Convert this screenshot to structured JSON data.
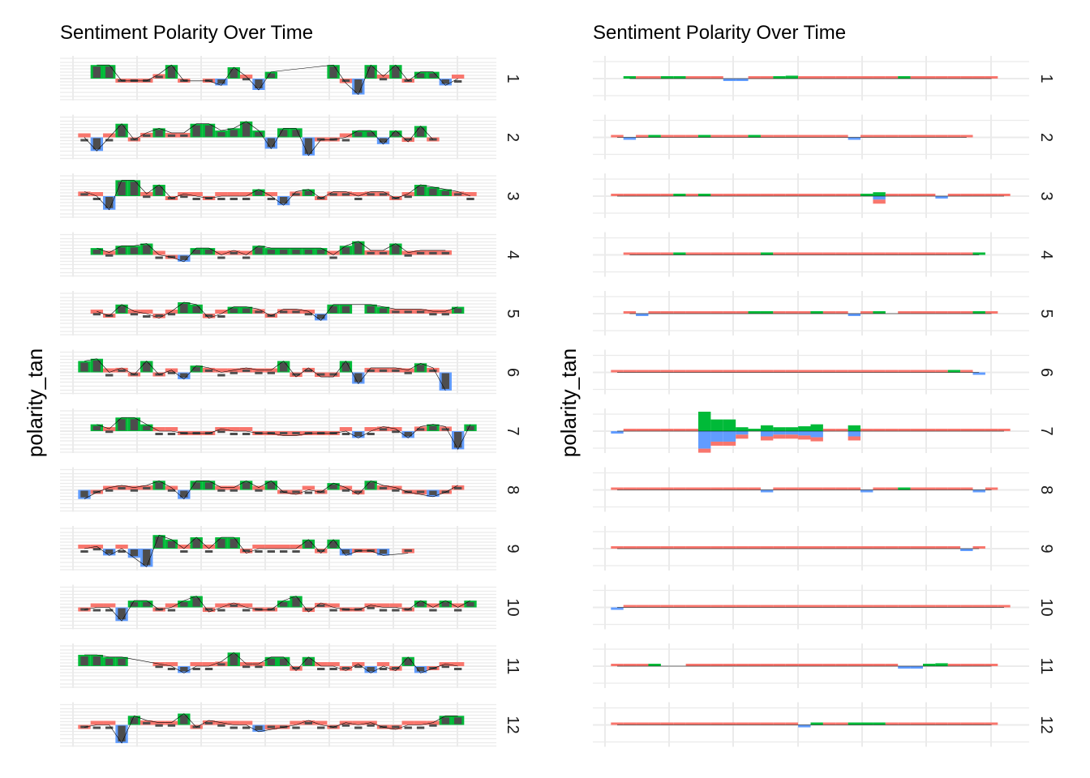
{
  "chart_data": [
    {
      "type": "bar",
      "title": "Sentiment Polarity Over Time",
      "xlabel": "",
      "ylabel": "polarity_tan",
      "facets": [
        "1",
        "2",
        "3",
        "4",
        "5",
        "6",
        "7",
        "8",
        "9",
        "10",
        "11",
        "12"
      ],
      "x_count": 32,
      "fill_colors": {
        "positive": "#00ba38",
        "negative": "#619cff",
        "neutral": "#f8766d"
      },
      "bar_color": "#4d4d4d",
      "panels": [
        {
          "facet": "1",
          "values": [
            null,
            0.6,
            0.6,
            -0.1,
            -0.1,
            -0.1,
            0.2,
            0.6,
            -0.1,
            null,
            -0.1,
            -0.3,
            0.5,
            0.1,
            -0.5,
            0.3,
            null,
            null,
            null,
            null,
            0.6,
            -0.2,
            -0.7,
            0.6,
            0.1,
            0.6,
            -0.1,
            0.3,
            0.3,
            -0.3,
            0.0,
            null
          ]
        },
        {
          "facet": "2",
          "values": [
            0.0,
            -0.6,
            0.0,
            0.6,
            -0.1,
            0.2,
            0.4,
            0.2,
            0.2,
            0.6,
            0.6,
            0.3,
            0.4,
            0.7,
            0.3,
            -0.5,
            0.4,
            0.4,
            -0.8,
            -0.1,
            -0.1,
            0.0,
            0.3,
            0.3,
            -0.3,
            0.3,
            -0.2,
            0.5,
            -0.1,
            null,
            null,
            null
          ]
        },
        {
          "facet": "3",
          "values": [
            0.2,
            0.0,
            -0.6,
            0.7,
            0.7,
            0.1,
            0.5,
            -0.1,
            0.1,
            0.0,
            -0.1,
            0.0,
            0.0,
            0.0,
            0.3,
            0.0,
            -0.4,
            0.2,
            0.3,
            -0.1,
            0.2,
            0.2,
            0.0,
            0.2,
            0.2,
            -0.1,
            0.1,
            0.5,
            0.4,
            0.3,
            0.2,
            0.0
          ]
        },
        {
          "facet": "4",
          "values": [
            null,
            0.3,
            0.1,
            0.4,
            0.4,
            0.5,
            0.0,
            -0.1,
            -0.3,
            0.3,
            0.3,
            0.0,
            0.2,
            0.0,
            0.4,
            0.3,
            0.3,
            0.3,
            0.3,
            0.3,
            0.0,
            0.4,
            0.6,
            0.2,
            0.2,
            0.5,
            0.1,
            0.2,
            0.2,
            0.2,
            null,
            null
          ]
        },
        {
          "facet": "5",
          "values": [
            null,
            0.1,
            -0.1,
            0.4,
            0.1,
            0.0,
            -0.2,
            0.1,
            0.5,
            0.4,
            -0.2,
            0.0,
            0.3,
            0.3,
            0.2,
            -0.1,
            0.2,
            0.2,
            0.1,
            -0.3,
            0.4,
            0.4,
            null,
            0.4,
            0.3,
            0.2,
            0.2,
            0.2,
            0.1,
            0.1,
            0.3,
            null
          ]
        },
        {
          "facet": "6",
          "values": [
            0.5,
            0.6,
            0.0,
            0.2,
            -0.1,
            0.5,
            -0.1,
            0.1,
            -0.3,
            0.3,
            0.2,
            0.0,
            0.1,
            0.2,
            0.1,
            0.1,
            0.5,
            -0.2,
            0.2,
            -0.2,
            -0.2,
            0.5,
            -0.5,
            0.2,
            0.2,
            0.2,
            0.1,
            0.4,
            0.2,
            -0.8,
            null,
            null
          ]
        },
        {
          "facet": "7",
          "values": [
            null,
            0.3,
            0.1,
            0.6,
            0.6,
            0.3,
            0.0,
            0.0,
            -0.1,
            -0.1,
            -0.1,
            0.1,
            0.0,
            0.0,
            -0.1,
            -0.1,
            -0.2,
            -0.2,
            -0.1,
            -0.1,
            -0.1,
            0.0,
            -0.3,
            0.0,
            0.2,
            0.1,
            -0.3,
            0.2,
            0.3,
            0.2,
            -0.8,
            0.3
          ]
        },
        {
          "facet": "8",
          "values": [
            -0.4,
            -0.1,
            0.1,
            0.2,
            0.1,
            0.2,
            0.4,
            0.1,
            -0.4,
            0.4,
            0.4,
            0.1,
            0.1,
            0.4,
            0.1,
            0.4,
            -0.1,
            -0.2,
            0.0,
            -0.1,
            0.3,
            0.1,
            -0.2,
            0.4,
            0.2,
            0.1,
            -0.1,
            -0.2,
            -0.3,
            -0.1,
            0.2,
            null
          ]
        },
        {
          "facet": "9",
          "values": [
            0.0,
            0.1,
            -0.3,
            0.0,
            -0.4,
            -0.8,
            0.6,
            0.4,
            0.0,
            0.5,
            0.0,
            0.5,
            0.5,
            -0.2,
            0.0,
            0.0,
            0.0,
            0.0,
            0.4,
            -0.2,
            0.4,
            -0.3,
            -0.1,
            -0.1,
            -0.3,
            null,
            -0.2,
            null,
            null,
            null,
            null,
            null
          ]
        },
        {
          "facet": "10",
          "values": [
            -0.1,
            0.0,
            0.0,
            -0.6,
            0.3,
            0.3,
            -0.1,
            0.0,
            0.3,
            0.5,
            -0.2,
            0.0,
            0.2,
            0.0,
            -0.1,
            -0.1,
            0.3,
            0.5,
            -0.2,
            0.2,
            0.0,
            -0.1,
            -0.1,
            0.1,
            0.0,
            0.0,
            -0.1,
            0.3,
            0.0,
            0.3,
            0.0,
            0.3
          ]
        },
        {
          "facet": "11",
          "values": [
            0.5,
            0.5,
            0.4,
            0.4,
            null,
            null,
            0.1,
            0.0,
            -0.3,
            0.0,
            0.0,
            0.2,
            0.6,
            0.1,
            0.1,
            0.4,
            0.4,
            -0.2,
            0.4,
            0.0,
            0.0,
            -0.2,
            0.1,
            -0.3,
            0.0,
            -0.2,
            0.4,
            -0.3,
            -0.1,
            0.1,
            0.0,
            null
          ]
        },
        {
          "facet": "12",
          "values": [
            -0.1,
            0.0,
            0.0,
            -0.8,
            0.4,
            0.2,
            0.1,
            0.1,
            0.5,
            -0.1,
            0.2,
            0.1,
            0.0,
            0.0,
            -0.3,
            -0.2,
            -0.1,
            0.0,
            0.2,
            0.0,
            -0.1,
            0.1,
            0.0,
            0.1,
            -0.1,
            -0.2,
            0.0,
            0.0,
            0.1,
            0.4,
            0.4,
            null
          ]
        }
      ]
    },
    {
      "type": "bar",
      "title": "Sentiment Polarity Over Time",
      "xlabel": "",
      "ylabel": "polarity_tan",
      "facets": [
        "1",
        "2",
        "3",
        "4",
        "5",
        "6",
        "7",
        "8",
        "9",
        "10",
        "11",
        "12"
      ],
      "x_count": 32,
      "fill_colors": {
        "positive": "#00ba38",
        "negative": "#619cff",
        "neutral": "#f8766d"
      },
      "panels": [
        {
          "facet": "1",
          "values": [
            null,
            0.08,
            0.05,
            0.06,
            0.1,
            0.12,
            0.05,
            0.05,
            0.05,
            -0.05,
            -0.1,
            0.05,
            0.06,
            0.1,
            0.15,
            0.05,
            0.05,
            0.05,
            0.05,
            0.05,
            0.05,
            0.05,
            0.05,
            0.08,
            0.05,
            0.05,
            0.05,
            0.05,
            0.05,
            0.05,
            0.05,
            null
          ]
        },
        {
          "facet": "2",
          "values": [
            0.05,
            -0.05,
            0.05,
            0.1,
            0.05,
            0.05,
            0.05,
            0.1,
            0.05,
            0.05,
            0.05,
            0.08,
            0.06,
            0.05,
            0.05,
            0.05,
            0.05,
            0.05,
            0.05,
            -0.05,
            0.05,
            0.05,
            0.05,
            0.05,
            0.05,
            0.05,
            0.05,
            0.05,
            0.05,
            null,
            null,
            null
          ]
        },
        {
          "facet": "3",
          "values": [
            0.05,
            0.05,
            0.05,
            0.05,
            0.05,
            0.08,
            0.05,
            0.1,
            0.05,
            0.05,
            0.05,
            0.05,
            0.05,
            0.05,
            0.05,
            0.05,
            0.06,
            0.05,
            0.05,
            0.05,
            0.1,
            0.2,
            0.05,
            0.05,
            0.05,
            0.05,
            -0.1,
            0.05,
            0.05,
            0.05,
            0.05,
            0.05
          ]
        },
        {
          "facet": "4",
          "values": [
            null,
            0.05,
            0.05,
            0.05,
            0.05,
            0.08,
            0.05,
            0.05,
            0.05,
            0.05,
            0.05,
            0.05,
            0.08,
            0.05,
            0.05,
            0.05,
            0.05,
            0.05,
            0.05,
            0.05,
            0.05,
            0.05,
            0.05,
            0.05,
            0.05,
            0.05,
            0.05,
            0.05,
            0.05,
            0.1,
            null,
            null
          ]
        },
        {
          "facet": "5",
          "values": [
            null,
            0.05,
            -0.05,
            0.05,
            0.05,
            0.05,
            0.05,
            0.05,
            0.05,
            0.05,
            0.05,
            0.1,
            0.08,
            0.05,
            0.05,
            0.05,
            0.08,
            0.05,
            0.05,
            -0.05,
            0.05,
            0.1,
            null,
            0.05,
            0.05,
            0.05,
            0.05,
            0.05,
            0.05,
            0.1,
            0.05,
            null
          ]
        },
        {
          "facet": "6",
          "values": [
            0.05,
            0.05,
            0.05,
            0.05,
            0.05,
            0.05,
            0.05,
            0.05,
            0.05,
            0.05,
            0.05,
            0.05,
            0.05,
            0.05,
            0.05,
            0.05,
            0.05,
            0.05,
            0.05,
            0.05,
            0.05,
            0.05,
            0.05,
            0.05,
            0.05,
            0.05,
            0.05,
            0.1,
            0.05,
            -0.1,
            null,
            null
          ]
        },
        {
          "facet": "7",
          "values": [
            -0.05,
            0.05,
            0.05,
            0.05,
            0.05,
            0.05,
            0.05,
            1.0,
            0.6,
            0.6,
            0.2,
            0.1,
            0.3,
            0.2,
            0.2,
            0.25,
            0.35,
            0.05,
            0.05,
            0.3,
            0.05,
            0.05,
            0.05,
            0.05,
            0.05,
            0.05,
            0.05,
            0.05,
            0.05,
            0.05,
            0.05,
            0.05
          ]
        },
        {
          "facet": "8",
          "values": [
            0.05,
            0.05,
            0.05,
            0.05,
            0.05,
            0.05,
            0.05,
            0.05,
            0.05,
            0.05,
            0.05,
            0.05,
            -0.05,
            0.05,
            0.05,
            0.05,
            0.05,
            0.05,
            0.05,
            0.05,
            -0.05,
            0.05,
            0.05,
            0.08,
            0.05,
            0.05,
            0.05,
            0.05,
            0.05,
            -0.05,
            0.05,
            null
          ]
        },
        {
          "facet": "9",
          "values": [
            0.05,
            0.05,
            0.05,
            0.05,
            0.05,
            0.05,
            0.05,
            0.05,
            0.05,
            0.05,
            0.05,
            0.05,
            0.05,
            0.05,
            0.05,
            0.05,
            0.05,
            0.05,
            0.05,
            0.05,
            0.05,
            0.05,
            0.05,
            0.05,
            0.05,
            0.05,
            0.05,
            0.05,
            -0.05,
            0.05,
            null,
            null
          ]
        },
        {
          "facet": "10",
          "values": [
            -0.05,
            0.05,
            0.05,
            0.05,
            0.05,
            0.05,
            0.06,
            0.05,
            0.05,
            0.05,
            0.05,
            0.05,
            0.05,
            0.05,
            0.05,
            0.05,
            0.05,
            0.05,
            0.05,
            0.05,
            0.05,
            0.05,
            0.05,
            0.05,
            0.05,
            0.05,
            0.05,
            0.05,
            0.05,
            0.05,
            0.05,
            0.05
          ]
        },
        {
          "facet": "11",
          "values": [
            0.05,
            0.05,
            0.05,
            0.1,
            null,
            null,
            0.05,
            0.05,
            0.05,
            0.05,
            0.05,
            0.05,
            0.05,
            0.05,
            0.05,
            0.05,
            0.05,
            0.05,
            0.05,
            0.05,
            0.05,
            0.05,
            0.05,
            -0.1,
            -0.1,
            0.1,
            0.15,
            0.05,
            0.05,
            0.05,
            0.05,
            null
          ]
        },
        {
          "facet": "12",
          "values": [
            0.05,
            0.05,
            0.05,
            0.05,
            0.05,
            0.05,
            0.05,
            0.05,
            0.05,
            0.05,
            0.05,
            0.05,
            0.05,
            0.05,
            0.05,
            -0.1,
            0.1,
            0.05,
            0.05,
            0.1,
            0.1,
            0.08,
            0.05,
            0.05,
            0.05,
            0.05,
            0.05,
            0.05,
            0.05,
            0.05,
            0.05,
            null
          ]
        }
      ]
    }
  ]
}
